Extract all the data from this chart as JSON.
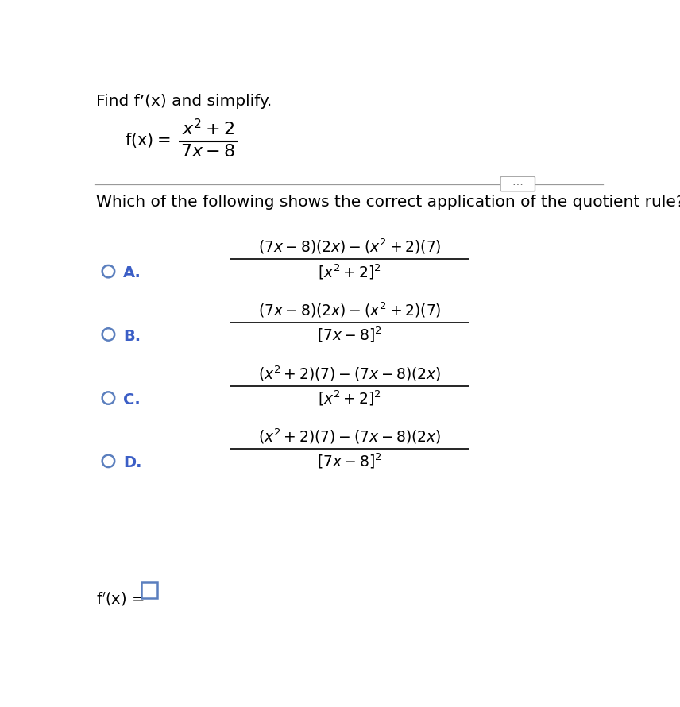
{
  "background_color": "#ffffff",
  "text_color": "#000000",
  "label_color": "#3b5ec6",
  "circle_color": "#5b7fbe",
  "divider_color": "#999999",
  "btn_color": "#aaaaaa",
  "answer_box_color": "#5b7fbe",
  "title": "Find f’(x) and simplify.",
  "question": "Which of the following shows the correct application of the quotient rule?",
  "options": [
    "A.",
    "B.",
    "C.",
    "D."
  ],
  "opt_numerators": [
    "(7x−8)(2x)−$\\left(x^2+2\\right)$(7)",
    "(7x−8)(2x)−$\\left(x^2+2\\right)$(7)",
    "$\\left(x^2+2\\right)$(7)−(7x−8)(2x)",
    "$\\left(x^2+2\\right)$(7)−(7x−8)(2x)"
  ],
  "opt_denominators": [
    "$\\left[x^2+2\\right]^2$",
    "$[7x-8]^2$",
    "$\\left[x^2+2\\right]^2$",
    "$[7x-8]^2$"
  ]
}
